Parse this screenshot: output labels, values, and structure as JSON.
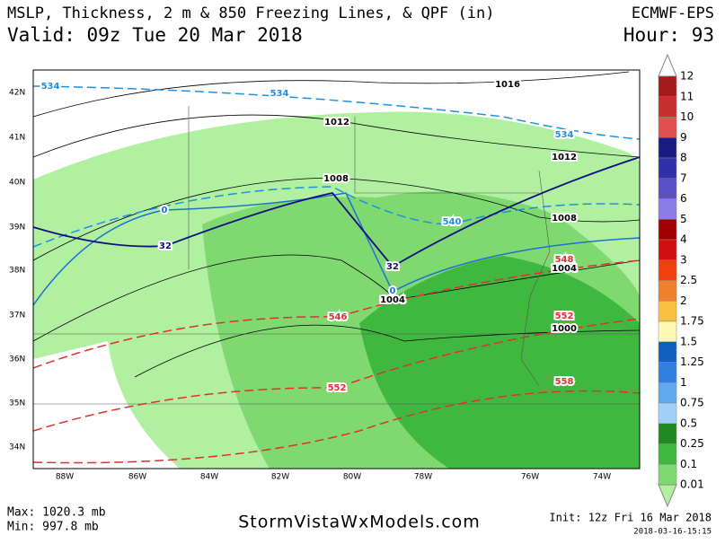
{
  "header": {
    "title": "MSLP, Thickness, 2 m & 850 Freezing Lines, & QPF (in)",
    "valid": "Valid: 09z Tue 20 Mar 2018",
    "model": "ECMWF-EPS",
    "hour": "Hour: 93"
  },
  "map": {
    "lat_labels": [
      "42N",
      "41N",
      "40N",
      "39N",
      "38N",
      "37N",
      "36N",
      "35N",
      "34N"
    ],
    "lon_labels": [
      "88W",
      "86W",
      "84W",
      "82W",
      "80W",
      "78W",
      "76W",
      "74W"
    ],
    "contour_labels": [
      "534",
      "534",
      "534",
      "1016",
      "1012",
      "1012",
      "1008",
      "1008",
      "1004",
      "1004",
      "1000",
      "0",
      "32",
      "32",
      "0",
      "540",
      "546",
      "552",
      "548",
      "552",
      "558"
    ]
  },
  "colorbar": {
    "labels": [
      "12",
      "11",
      "10",
      "9",
      "8",
      "7",
      "6",
      "5",
      "4",
      "3",
      "2.5",
      "2",
      "1.75",
      "1.5",
      "1.25",
      "1",
      "0.75",
      "0.5",
      "0.25",
      "0.1",
      "0.01"
    ],
    "colors": [
      "#ffffff",
      "#a51a1a",
      "#c82f2f",
      "#e05050",
      "#1a1a80",
      "#3030a8",
      "#5a50c8",
      "#8c7ce8",
      "#a00000",
      "#d01010",
      "#f04010",
      "#f08030",
      "#f8c040",
      "#fff8b0",
      "#1060c0",
      "#3080e0",
      "#60a8f0",
      "#a0d0f8",
      "#208a20",
      "#40b840",
      "#80d870",
      "#b0f0a0"
    ]
  },
  "footer": {
    "max": "Max: 1020.3 mb",
    "min": "Min: 997.8 mb",
    "site": "StormVistaWxModels.com",
    "init": "Init: 12z Fri 16 Mar 2018",
    "stamp": "2018-03-16-15:15"
  }
}
